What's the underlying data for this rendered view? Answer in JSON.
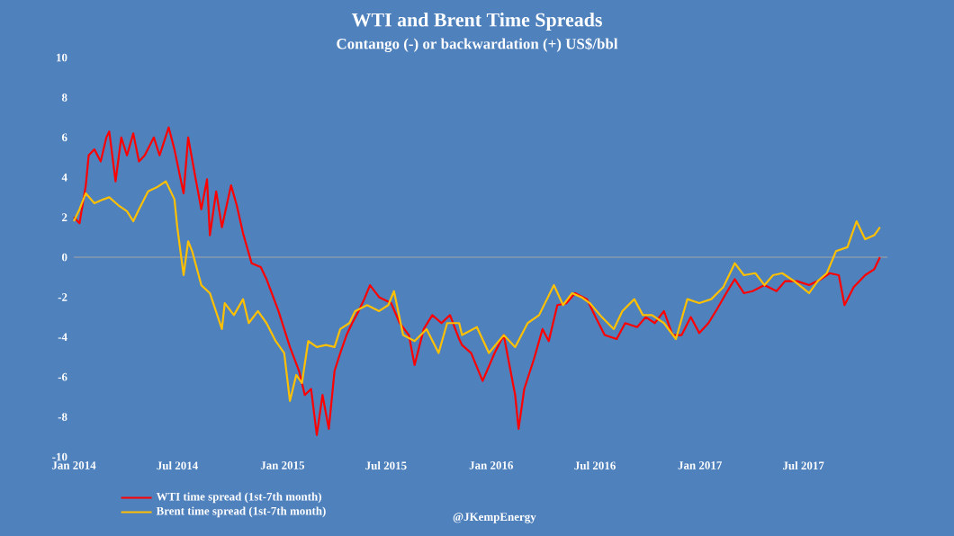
{
  "chart_data": {
    "type": "line",
    "title": "WTI  and Brent Time Spreads",
    "subtitle": "Contango (-) or backwardation (+) US$/bbl",
    "xlim": [
      "2014-01-01",
      "2017-11-25"
    ],
    "xticks": [
      {
        "value": "2014-01-01",
        "label": "Jan 2014"
      },
      {
        "value": "2014-07-01",
        "label": "Jul 2014"
      },
      {
        "value": "2015-01-01",
        "label": "Jan 2015"
      },
      {
        "value": "2015-07-01",
        "label": "Jul 2015"
      },
      {
        "value": "2016-01-01",
        "label": "Jan 2016"
      },
      {
        "value": "2016-07-01",
        "label": "Jul 2016"
      },
      {
        "value": "2017-01-01",
        "label": "Jan 2017"
      },
      {
        "value": "2017-07-01",
        "label": "Jul 2017"
      }
    ],
    "ylim": [
      -10,
      10
    ],
    "yticks": [
      -10,
      -8,
      -6,
      -4,
      -2,
      0,
      2,
      4,
      6,
      8,
      10
    ],
    "legend": "bottom",
    "ref_lines": [
      {
        "axis": "y",
        "value": 0,
        "color": "#a6a6a6"
      }
    ],
    "annotations": [
      "@JKempEnergy"
    ],
    "series": [
      {
        "name": "WTI time spread (1st-7th month)",
        "color": "#ff0000",
        "x": [
          "2014-01-01",
          "2014-01-11",
          "2014-01-22",
          "2014-01-27",
          "2014-02-06",
          "2014-02-17",
          "2014-02-27",
          "2014-03-04",
          "2014-03-15",
          "2014-03-25",
          "2014-04-04",
          "2014-04-15",
          "2014-04-25",
          "2014-05-05",
          "2014-05-21",
          "2014-05-31",
          "2014-06-16",
          "2014-06-26",
          "2014-07-12",
          "2014-07-20",
          "2014-08-01",
          "2014-08-12",
          "2014-08-22",
          "2014-08-27",
          "2014-09-07",
          "2014-09-17",
          "2014-10-03",
          "2014-10-13",
          "2014-10-24",
          "2014-11-08",
          "2014-11-24",
          "2014-12-04",
          "2014-12-25",
          "2015-01-14",
          "2015-01-30",
          "2015-02-09",
          "2015-02-20",
          "2015-03-02",
          "2015-03-12",
          "2015-03-23",
          "2015-04-02",
          "2015-04-12",
          "2015-04-23",
          "2015-05-03",
          "2015-05-14",
          "2015-05-24",
          "2015-06-03",
          "2015-06-19",
          "2015-07-10",
          "2015-07-25",
          "2015-08-10",
          "2015-08-20",
          "2015-09-05",
          "2015-09-20",
          "2015-10-06",
          "2015-10-21",
          "2015-11-06",
          "2015-11-11",
          "2015-11-27",
          "2015-12-17",
          "2016-01-07",
          "2016-01-23",
          "2016-02-12",
          "2016-02-18",
          "2016-02-28",
          "2016-03-16",
          "2016-03-31",
          "2016-04-11",
          "2016-04-26",
          "2016-05-12",
          "2016-05-27",
          "2016-06-17",
          "2016-07-02",
          "2016-07-18",
          "2016-08-08",
          "2016-08-23",
          "2016-09-13",
          "2016-09-28",
          "2016-10-14",
          "2016-10-30",
          "2016-11-14",
          "2016-11-30",
          "2016-12-16",
          "2016-12-31",
          "2017-01-16",
          "2017-01-31",
          "2017-02-16",
          "2017-03-03",
          "2017-03-19",
          "2017-04-03",
          "2017-04-24",
          "2017-05-15",
          "2017-05-30",
          "2017-06-20",
          "2017-07-11",
          "2017-08-01",
          "2017-08-16",
          "2017-09-01",
          "2017-09-11",
          "2017-09-27",
          "2017-10-17",
          "2017-11-02",
          "2017-11-12"
        ],
        "values": [
          2.0,
          1.7,
          3.6,
          5.1,
          5.4,
          4.8,
          6.0,
          6.3,
          3.8,
          6.0,
          5.1,
          6.2,
          4.8,
          5.1,
          6.0,
          5.1,
          6.5,
          5.4,
          3.2,
          6.0,
          4.1,
          2.4,
          3.9,
          1.1,
          3.3,
          1.5,
          3.6,
          2.6,
          1.2,
          -0.3,
          -0.5,
          -1.1,
          -2.7,
          -4.5,
          -5.7,
          -6.9,
          -6.6,
          -8.9,
          -6.9,
          -8.6,
          -5.7,
          -4.8,
          -3.9,
          -3.3,
          -2.7,
          -2.1,
          -1.4,
          -2.0,
          -2.3,
          -3.3,
          -3.9,
          -5.4,
          -3.6,
          -2.9,
          -3.3,
          -2.9,
          -4.1,
          -4.4,
          -4.8,
          -6.2,
          -4.8,
          -3.9,
          -6.9,
          -8.6,
          -6.6,
          -5.1,
          -3.6,
          -4.2,
          -2.4,
          -2.3,
          -1.8,
          -2.1,
          -3.0,
          -3.9,
          -4.1,
          -3.3,
          -3.5,
          -3.0,
          -3.3,
          -2.7,
          -3.9,
          -3.9,
          -3.0,
          -3.8,
          -3.3,
          -2.6,
          -1.8,
          -1.1,
          -1.8,
          -1.7,
          -1.4,
          -1.7,
          -1.2,
          -1.2,
          -1.4,
          -1.1,
          -0.8,
          -0.9,
          -2.4,
          -1.5,
          -0.9,
          -0.6,
          0.0
        ]
      },
      {
        "name": "Brent time spread (1st-7th month)",
        "color": "#ffc000",
        "x": [
          "2014-01-01",
          "2014-01-11",
          "2014-01-22",
          "2014-02-06",
          "2014-02-22",
          "2014-03-04",
          "2014-03-20",
          "2014-04-04",
          "2014-04-15",
          "2014-04-25",
          "2014-05-11",
          "2014-05-26",
          "2014-06-11",
          "2014-06-26",
          "2014-07-01",
          "2014-07-12",
          "2014-07-20",
          "2014-07-27",
          "2014-08-12",
          "2014-08-27",
          "2014-09-17",
          "2014-09-22",
          "2014-10-08",
          "2014-10-24",
          "2014-11-03",
          "2014-11-19",
          "2014-12-04",
          "2014-12-20",
          "2015-01-04",
          "2015-01-14",
          "2015-01-25",
          "2015-02-04",
          "2015-02-15",
          "2015-03-02",
          "2015-03-18",
          "2015-04-02",
          "2015-04-12",
          "2015-04-28",
          "2015-05-08",
          "2015-05-29",
          "2015-06-19",
          "2015-07-05",
          "2015-07-15",
          "2015-07-31",
          "2015-08-20",
          "2015-09-10",
          "2015-10-01",
          "2015-10-16",
          "2015-11-06",
          "2015-11-11",
          "2015-12-07",
          "2015-12-28",
          "2016-01-23",
          "2016-02-12",
          "2016-03-05",
          "2016-03-25",
          "2016-04-20",
          "2016-05-06",
          "2016-05-22",
          "2016-06-07",
          "2016-06-22",
          "2016-07-13",
          "2016-08-03",
          "2016-08-18",
          "2016-09-08",
          "2016-09-23",
          "2016-10-09",
          "2016-10-30",
          "2016-11-20",
          "2016-12-10",
          "2016-12-31",
          "2017-01-21",
          "2017-02-11",
          "2017-03-03",
          "2017-03-19",
          "2017-04-08",
          "2017-04-24",
          "2017-05-09",
          "2017-05-25",
          "2017-06-15",
          "2017-07-11",
          "2017-07-26",
          "2017-08-11",
          "2017-08-27",
          "2017-09-16",
          "2017-10-02",
          "2017-10-17",
          "2017-11-02",
          "2017-11-12"
        ],
        "values": [
          1.8,
          2.4,
          3.2,
          2.7,
          2.9,
          3.0,
          2.6,
          2.3,
          1.8,
          2.4,
          3.3,
          3.5,
          3.8,
          2.9,
          1.5,
          -0.9,
          0.8,
          0.3,
          -1.4,
          -1.8,
          -3.6,
          -2.3,
          -2.9,
          -2.1,
          -3.3,
          -2.7,
          -3.3,
          -4.2,
          -4.8,
          -7.2,
          -5.9,
          -6.3,
          -4.2,
          -4.5,
          -4.4,
          -4.5,
          -3.6,
          -3.3,
          -2.7,
          -2.4,
          -2.7,
          -2.4,
          -1.7,
          -3.9,
          -4.2,
          -3.6,
          -4.8,
          -3.3,
          -3.3,
          -3.9,
          -3.5,
          -4.8,
          -3.9,
          -4.5,
          -3.3,
          -2.9,
          -1.4,
          -2.4,
          -1.8,
          -2.0,
          -2.3,
          -3.0,
          -3.6,
          -2.7,
          -2.1,
          -2.9,
          -2.9,
          -3.3,
          -4.1,
          -2.1,
          -2.3,
          -2.1,
          -1.5,
          -0.3,
          -0.9,
          -0.8,
          -1.4,
          -0.9,
          -0.8,
          -1.2,
          -1.8,
          -1.2,
          -0.8,
          0.3,
          0.5,
          1.8,
          0.9,
          1.1,
          1.5
        ]
      }
    ]
  }
}
